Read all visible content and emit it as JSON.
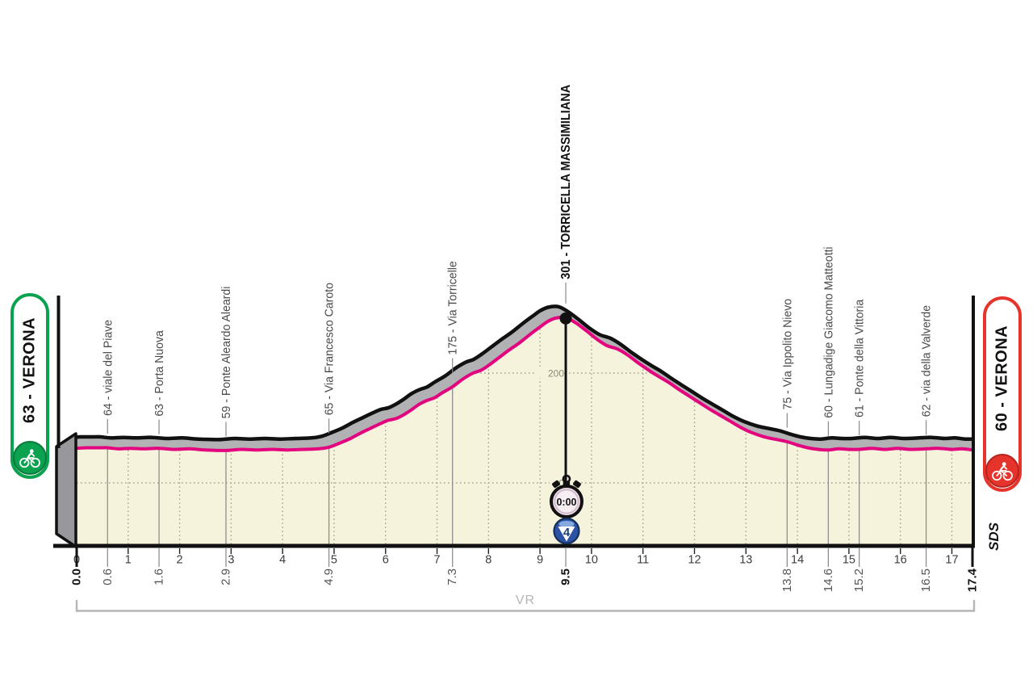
{
  "page": {
    "background": "#ffffff",
    "region_code": "VR",
    "brand_mark": "SDS"
  },
  "banners": {
    "start": {
      "label": "63 - VERONA",
      "color": "#0AA14F",
      "ring_color": "#0B7A3C",
      "icon": "cyclist-icon"
    },
    "finish": {
      "label": "60 - VERONA",
      "color": "#E6332B",
      "ring_color": "#B5241D",
      "icon": "cyclist-icon"
    }
  },
  "gpm": {
    "time": "0:00",
    "category": "4",
    "km": 9.5,
    "elevation": 301,
    "summit_label": "301 - TORRICELLA MASSIMILIANA",
    "icon": "stopwatch-icon",
    "badge_icon": "category-badge"
  },
  "chart_data": {
    "type": "area",
    "title": "",
    "x_unit": "km",
    "y_unit": "m",
    "x_range": [
      0,
      17.4
    ],
    "y_gridlines": [
      {
        "value": 0,
        "label": "0"
      },
      {
        "value": 200,
        "label": "200"
      }
    ],
    "km_ticks": [
      0,
      1,
      2,
      3,
      4,
      5,
      6,
      7,
      8,
      9,
      10,
      11,
      12,
      13,
      14,
      15,
      16,
      17
    ],
    "waypoints": [
      {
        "km": 0.0,
        "km_label": "0.0",
        "elevation": 63,
        "label": "63 - VERONA",
        "role": "start",
        "emphasis": true
      },
      {
        "km": 0.6,
        "km_label": "0.6",
        "elevation": 64,
        "label": "64 - viale del Piave",
        "role": "point",
        "emphasis": false
      },
      {
        "km": 1.6,
        "km_label": "1.6",
        "elevation": 63,
        "label": "63 - Porta Nuova",
        "role": "point",
        "emphasis": false
      },
      {
        "km": 2.9,
        "km_label": "2.9",
        "elevation": 59,
        "label": "59 - Ponte Aleardo Aleardi",
        "role": "point",
        "emphasis": false
      },
      {
        "km": 4.9,
        "km_label": "4.9",
        "elevation": 65,
        "label": "65 - Via Francesco Caroto",
        "role": "point",
        "emphasis": false
      },
      {
        "km": 7.3,
        "km_label": "7.3",
        "elevation": 175,
        "label": "175 - Via Torricelle",
        "role": "point",
        "emphasis": false
      },
      {
        "km": 9.5,
        "km_label": "9.5",
        "elevation": 301,
        "label": "301 - TORRICELLA MASSIMILIANA",
        "role": "gpm",
        "emphasis": true
      },
      {
        "km": 13.8,
        "km_label": "13.8",
        "elevation": 75,
        "label": "75 - Via Ippolito Nievo",
        "role": "point",
        "emphasis": false
      },
      {
        "km": 14.6,
        "km_label": "14.6",
        "elevation": 60,
        "label": "60 - Lungadige Giacomo Matteotti",
        "role": "point",
        "emphasis": false
      },
      {
        "km": 15.2,
        "km_label": "15.2",
        "elevation": 61,
        "label": "61 - Ponte della Vittoria",
        "role": "point",
        "emphasis": false
      },
      {
        "km": 16.5,
        "km_label": "16.5",
        "elevation": 62,
        "label": "62 - via della Valverde",
        "role": "point",
        "emphasis": false
      },
      {
        "km": 17.4,
        "km_label": "17.4",
        "elevation": 60,
        "label": "60 - VERONA",
        "role": "finish",
        "emphasis": true
      }
    ],
    "profile": [
      [
        0.0,
        63
      ],
      [
        0.2,
        64
      ],
      [
        0.45,
        64
      ],
      [
        0.6,
        64
      ],
      [
        0.8,
        62
      ],
      [
        1.05,
        63
      ],
      [
        1.3,
        62
      ],
      [
        1.6,
        63
      ],
      [
        1.9,
        61
      ],
      [
        2.2,
        62
      ],
      [
        2.5,
        60
      ],
      [
        2.9,
        59
      ],
      [
        3.2,
        61
      ],
      [
        3.5,
        60
      ],
      [
        3.8,
        61
      ],
      [
        4.1,
        60
      ],
      [
        4.4,
        61
      ],
      [
        4.7,
        62
      ],
      [
        4.9,
        65
      ],
      [
        5.1,
        72
      ],
      [
        5.3,
        80
      ],
      [
        5.5,
        90
      ],
      [
        5.7,
        99
      ],
      [
        5.9,
        108
      ],
      [
        6.05,
        114
      ],
      [
        6.2,
        117
      ],
      [
        6.35,
        124
      ],
      [
        6.5,
        133
      ],
      [
        6.65,
        143
      ],
      [
        6.8,
        150
      ],
      [
        6.95,
        155
      ],
      [
        7.1,
        164
      ],
      [
        7.3,
        175
      ],
      [
        7.5,
        189
      ],
      [
        7.7,
        200
      ],
      [
        7.85,
        205
      ],
      [
        8.0,
        214
      ],
      [
        8.2,
        228
      ],
      [
        8.4,
        242
      ],
      [
        8.6,
        255
      ],
      [
        8.8,
        270
      ],
      [
        9.0,
        284
      ],
      [
        9.15,
        294
      ],
      [
        9.3,
        300
      ],
      [
        9.5,
        301
      ],
      [
        9.7,
        291
      ],
      [
        9.9,
        277
      ],
      [
        10.1,
        262
      ],
      [
        10.3,
        250
      ],
      [
        10.5,
        244
      ],
      [
        10.7,
        233
      ],
      [
        10.9,
        219
      ],
      [
        11.1,
        206
      ],
      [
        11.3,
        194
      ],
      [
        11.5,
        183
      ],
      [
        11.7,
        170
      ],
      [
        11.9,
        158
      ],
      [
        12.1,
        146
      ],
      [
        12.3,
        134
      ],
      [
        12.5,
        123
      ],
      [
        12.7,
        112
      ],
      [
        12.9,
        101
      ],
      [
        13.1,
        92
      ],
      [
        13.35,
        84
      ],
      [
        13.6,
        79
      ],
      [
        13.8,
        75
      ],
      [
        14.0,
        69
      ],
      [
        14.2,
        64
      ],
      [
        14.4,
        61
      ],
      [
        14.6,
        60
      ],
      [
        14.8,
        62
      ],
      [
        15.0,
        61
      ],
      [
        15.2,
        61
      ],
      [
        15.45,
        63
      ],
      [
        15.7,
        61
      ],
      [
        15.95,
        63
      ],
      [
        16.2,
        61
      ],
      [
        16.5,
        62
      ],
      [
        16.75,
        63
      ],
      [
        17.0,
        61
      ],
      [
        17.2,
        62
      ],
      [
        17.4,
        60
      ]
    ],
    "colors": {
      "line": "#E4037E",
      "fill": "#F5F3DB",
      "ribbon": "#B2B1B4",
      "ribbon_edge": "#111111",
      "axis": "#111111",
      "grid": "#A6A691",
      "waypoint_line": "#8F8F8F",
      "label_gray": "#555555",
      "label_dark": "#111111",
      "name_label": "#4A4A4A",
      "bracket": "#B5B5B5",
      "side_face": "#98979B",
      "grid_label": "#8B8B78"
    }
  }
}
